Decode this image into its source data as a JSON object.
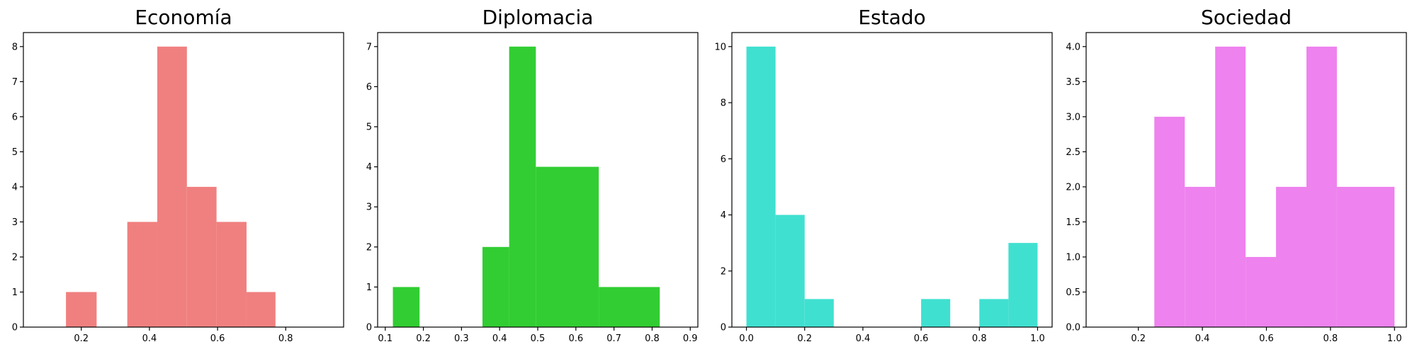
{
  "chart_data": [
    {
      "type": "bar",
      "title": "Economía",
      "color": "#f08080",
      "xlim": [
        0.03,
        0.97
      ],
      "ylim": [
        0,
        8.4
      ],
      "xticks": [
        0.2,
        0.4,
        0.6,
        0.8
      ],
      "xtick_labels": [
        "0.2",
        "0.4",
        "0.6",
        "0.8"
      ],
      "yticks": [
        0,
        1,
        2,
        3,
        4,
        5,
        6,
        7,
        8
      ],
      "ytick_labels": [
        "0",
        "1",
        "2",
        "3",
        "4",
        "5",
        "6",
        "7",
        "8"
      ],
      "bins": [
        {
          "x0": 0.155,
          "x1": 0.245,
          "value": 1
        },
        {
          "x0": 0.245,
          "x1": 0.335,
          "value": 0
        },
        {
          "x0": 0.335,
          "x1": 0.423,
          "value": 3
        },
        {
          "x0": 0.423,
          "x1": 0.51,
          "value": 8
        },
        {
          "x0": 0.51,
          "x1": 0.597,
          "value": 4
        },
        {
          "x0": 0.597,
          "x1": 0.685,
          "value": 3
        },
        {
          "x0": 0.685,
          "x1": 0.77,
          "value": 1
        }
      ]
    },
    {
      "type": "bar",
      "title": "Diplomacia",
      "color": "#32cd32",
      "xlim": [
        0.08,
        0.92
      ],
      "ylim": [
        0,
        7.35
      ],
      "xticks": [
        0.1,
        0.2,
        0.3,
        0.4,
        0.5,
        0.6,
        0.7,
        0.8,
        0.9
      ],
      "xtick_labels": [
        "0.1",
        "0.2",
        "0.3",
        "0.4",
        "0.5",
        "0.6",
        "0.7",
        "0.8",
        "0.9"
      ],
      "yticks": [
        0,
        1,
        2,
        3,
        4,
        5,
        6,
        7
      ],
      "ytick_labels": [
        "0",
        "1",
        "2",
        "3",
        "4",
        "5",
        "6",
        "7"
      ],
      "bins": [
        {
          "x0": 0.12,
          "x1": 0.19,
          "value": 1
        },
        {
          "x0": 0.19,
          "x1": 0.355,
          "value": 0
        },
        {
          "x0": 0.355,
          "x1": 0.425,
          "value": 2
        },
        {
          "x0": 0.425,
          "x1": 0.495,
          "value": 7
        },
        {
          "x0": 0.495,
          "x1": 0.66,
          "value": 4
        },
        {
          "x0": 0.66,
          "x1": 0.82,
          "value": 1
        }
      ]
    },
    {
      "type": "bar",
      "title": "Estado",
      "color": "#40e0d0",
      "xlim": [
        -0.05,
        1.05
      ],
      "ylim": [
        0,
        10.5
      ],
      "xticks": [
        0.0,
        0.2,
        0.4,
        0.6,
        0.8,
        1.0
      ],
      "xtick_labels": [
        "0.0",
        "0.2",
        "0.4",
        "0.6",
        "0.8",
        "1.0"
      ],
      "yticks": [
        0,
        2,
        4,
        6,
        8,
        10
      ],
      "ytick_labels": [
        "0",
        "2",
        "4",
        "6",
        "8",
        "10"
      ],
      "bins": [
        {
          "x0": 0.0,
          "x1": 0.1,
          "value": 10
        },
        {
          "x0": 0.1,
          "x1": 0.2,
          "value": 4
        },
        {
          "x0": 0.2,
          "x1": 0.3,
          "value": 1
        },
        {
          "x0": 0.3,
          "x1": 0.6,
          "value": 0
        },
        {
          "x0": 0.6,
          "x1": 0.7,
          "value": 1
        },
        {
          "x0": 0.7,
          "x1": 0.8,
          "value": 0
        },
        {
          "x0": 0.8,
          "x1": 0.9,
          "value": 1
        },
        {
          "x0": 0.9,
          "x1": 1.0,
          "value": 3
        }
      ]
    },
    {
      "type": "bar",
      "title": "Sociedad",
      "color": "#ee82ee",
      "xlim": [
        0.037,
        1.037
      ],
      "ylim": [
        0,
        4.2
      ],
      "xticks": [
        0.2,
        0.4,
        0.6,
        0.8,
        1.0
      ],
      "xtick_labels": [
        "0.2",
        "0.4",
        "0.6",
        "0.8",
        "1.0"
      ],
      "yticks": [
        0,
        0.5,
        1.0,
        1.5,
        2.0,
        2.5,
        3.0,
        3.5,
        4.0
      ],
      "ytick_labels": [
        "0.0",
        "0.5",
        "1.0",
        "1.5",
        "2.0",
        "2.5",
        "3.0",
        "3.5",
        "4.0"
      ],
      "bins": [
        {
          "x0": 0.25,
          "x1": 0.345,
          "value": 3
        },
        {
          "x0": 0.345,
          "x1": 0.44,
          "value": 2
        },
        {
          "x0": 0.44,
          "x1": 0.535,
          "value": 4
        },
        {
          "x0": 0.535,
          "x1": 0.63,
          "value": 1
        },
        {
          "x0": 0.63,
          "x1": 0.725,
          "value": 2
        },
        {
          "x0": 0.725,
          "x1": 0.82,
          "value": 4
        },
        {
          "x0": 0.82,
          "x1": 1.0,
          "value": 2
        }
      ]
    }
  ]
}
